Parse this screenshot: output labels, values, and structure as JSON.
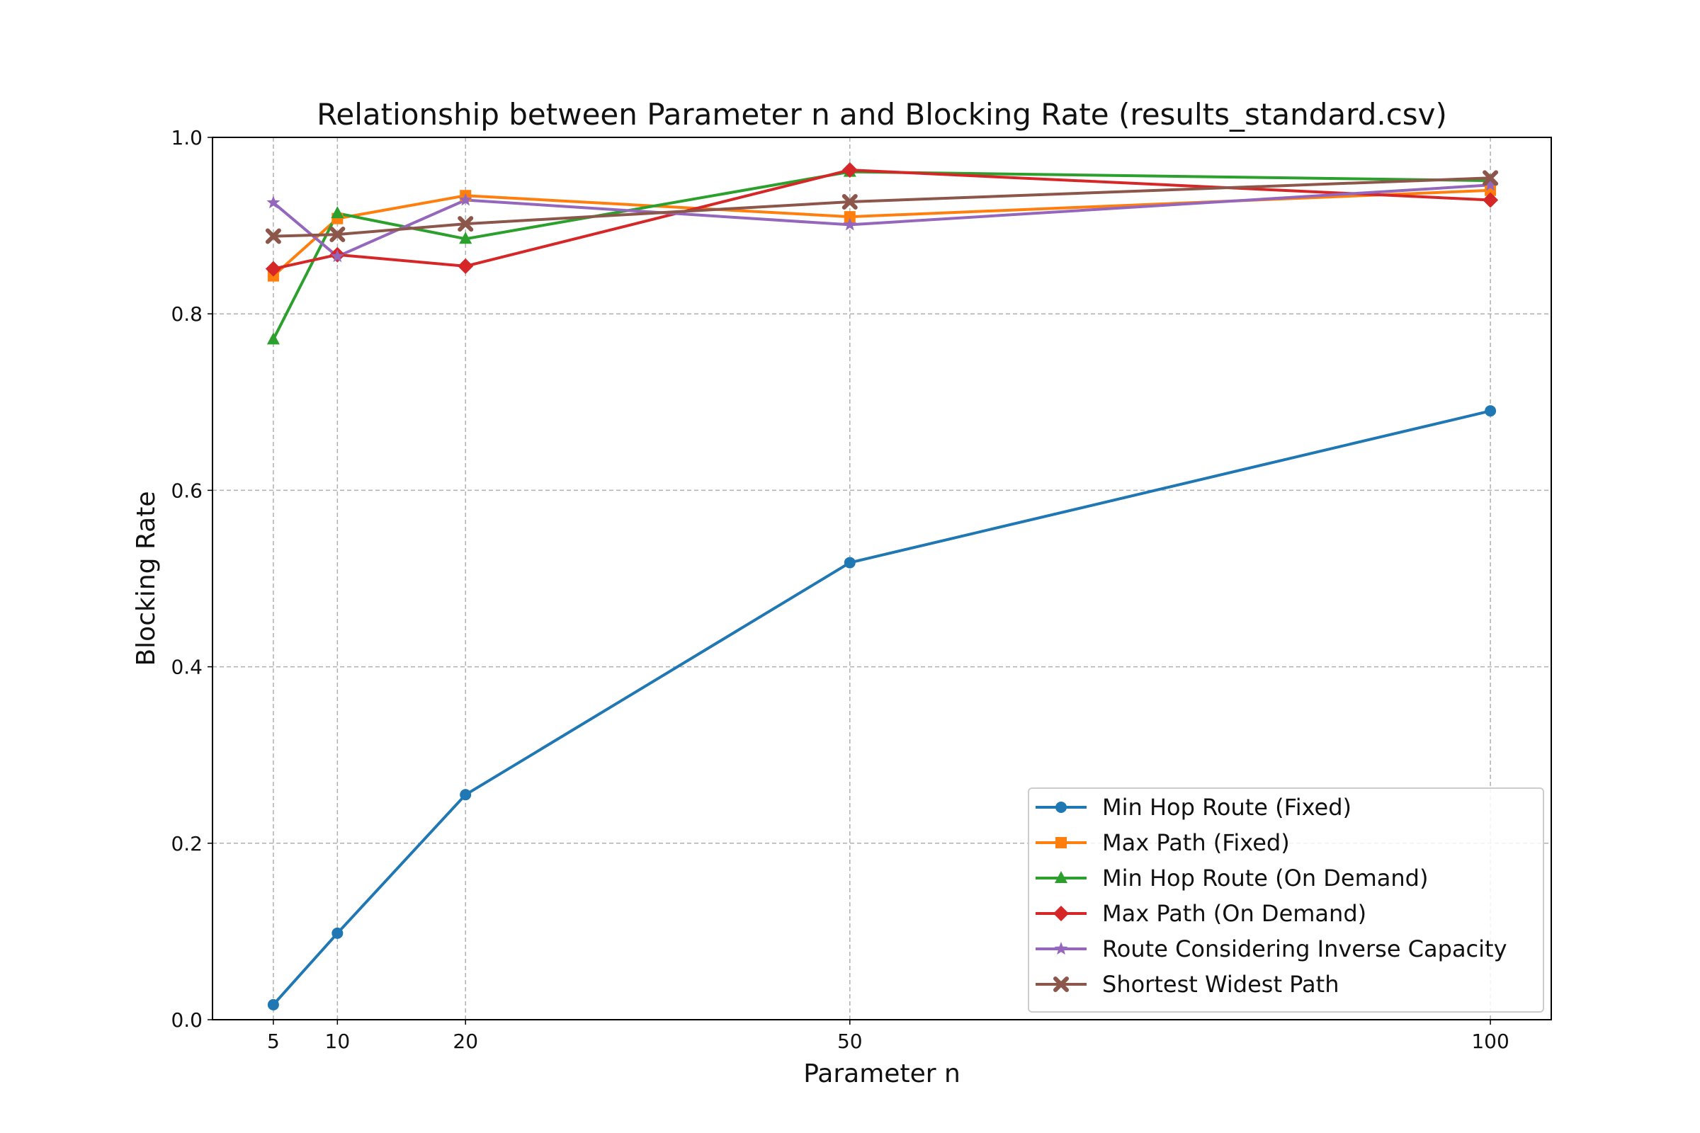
{
  "chart_data": {
    "type": "line",
    "title": "Relationship between Parameter n and Blocking Rate (results_standard.csv)",
    "xlabel": "Parameter n",
    "ylabel": "Blocking Rate",
    "x": [
      5,
      10,
      20,
      50,
      100
    ],
    "x_ticks": [
      "5",
      "10",
      "20",
      "50",
      "100"
    ],
    "y_ticks": [
      "0.0",
      "0.2",
      "0.4",
      "0.6",
      "0.8",
      "1.0"
    ],
    "xlim": [
      0.25,
      104.75
    ],
    "ylim": [
      0,
      1.0
    ],
    "grid": true,
    "legend_position": "lower-right",
    "series": [
      {
        "name": "Min Hop Route (Fixed)",
        "color": "#1f77b4",
        "marker": "circle",
        "values": [
          0.017,
          0.098,
          0.255,
          0.518,
          0.69
        ]
      },
      {
        "name": "Max Path (Fixed)",
        "color": "#ff7f0e",
        "marker": "square",
        "values": [
          0.843,
          0.908,
          0.934,
          0.91,
          0.94
        ]
      },
      {
        "name": "Min Hop Route (On Demand)",
        "color": "#2ca02c",
        "marker": "triangle",
        "values": [
          0.771,
          0.914,
          0.885,
          0.961,
          0.951
        ]
      },
      {
        "name": "Max Path (On Demand)",
        "color": "#d62728",
        "marker": "diamond",
        "values": [
          0.851,
          0.867,
          0.854,
          0.963,
          0.929
        ]
      },
      {
        "name": "Route Considering Inverse Capacity",
        "color": "#9467bd",
        "marker": "star",
        "values": [
          0.926,
          0.865,
          0.929,
          0.901,
          0.946
        ]
      },
      {
        "name": "Shortest Widest Path",
        "color": "#8c564b",
        "marker": "x",
        "values": [
          0.888,
          0.89,
          0.902,
          0.927,
          0.954
        ]
      }
    ]
  }
}
